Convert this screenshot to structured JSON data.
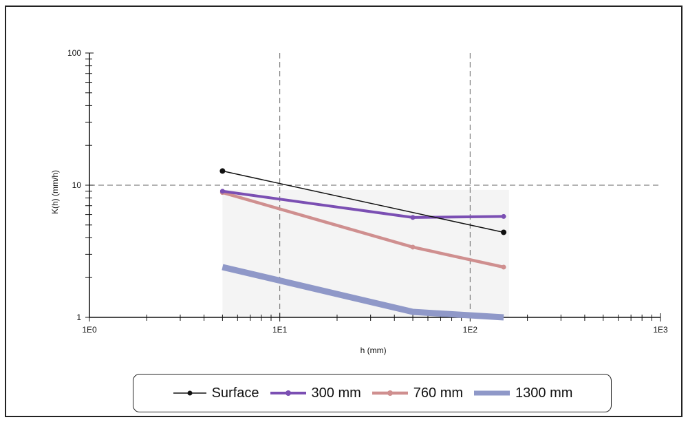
{
  "chart_data": {
    "type": "line",
    "title": "",
    "xlabel": "h (mm)",
    "ylabel": "K(h) (mm/h)",
    "xscale": "log",
    "yscale": "log",
    "xlim": [
      1,
      1000
    ],
    "ylim": [
      1,
      100
    ],
    "x_tick_labels": [
      "1E0",
      "1E1",
      "1E2",
      "1E3"
    ],
    "y_tick_labels": [
      "1",
      "10",
      "100"
    ],
    "grid": "dashed major gridlines",
    "legend_position": "bottom",
    "series": [
      {
        "name": "Surface",
        "x": [
          5,
          150
        ],
        "y": [
          12.8,
          4.4
        ],
        "color": "#111111",
        "marker": "circle"
      },
      {
        "name": "300 mm",
        "x": [
          5,
          50,
          150
        ],
        "y": [
          9.0,
          5.7,
          5.8
        ],
        "color": "#7b4fb3",
        "marker": "circle"
      },
      {
        "name": "760 mm",
        "x": [
          5,
          50,
          150
        ],
        "y": [
          8.8,
          3.4,
          2.4
        ],
        "color": "#cf8f8f",
        "marker": "circle"
      },
      {
        "name": "1300 mm",
        "x": [
          5,
          50,
          150
        ],
        "y": [
          2.4,
          1.1,
          1.0
        ],
        "color": "#8f98c8",
        "marker": "none"
      }
    ]
  }
}
